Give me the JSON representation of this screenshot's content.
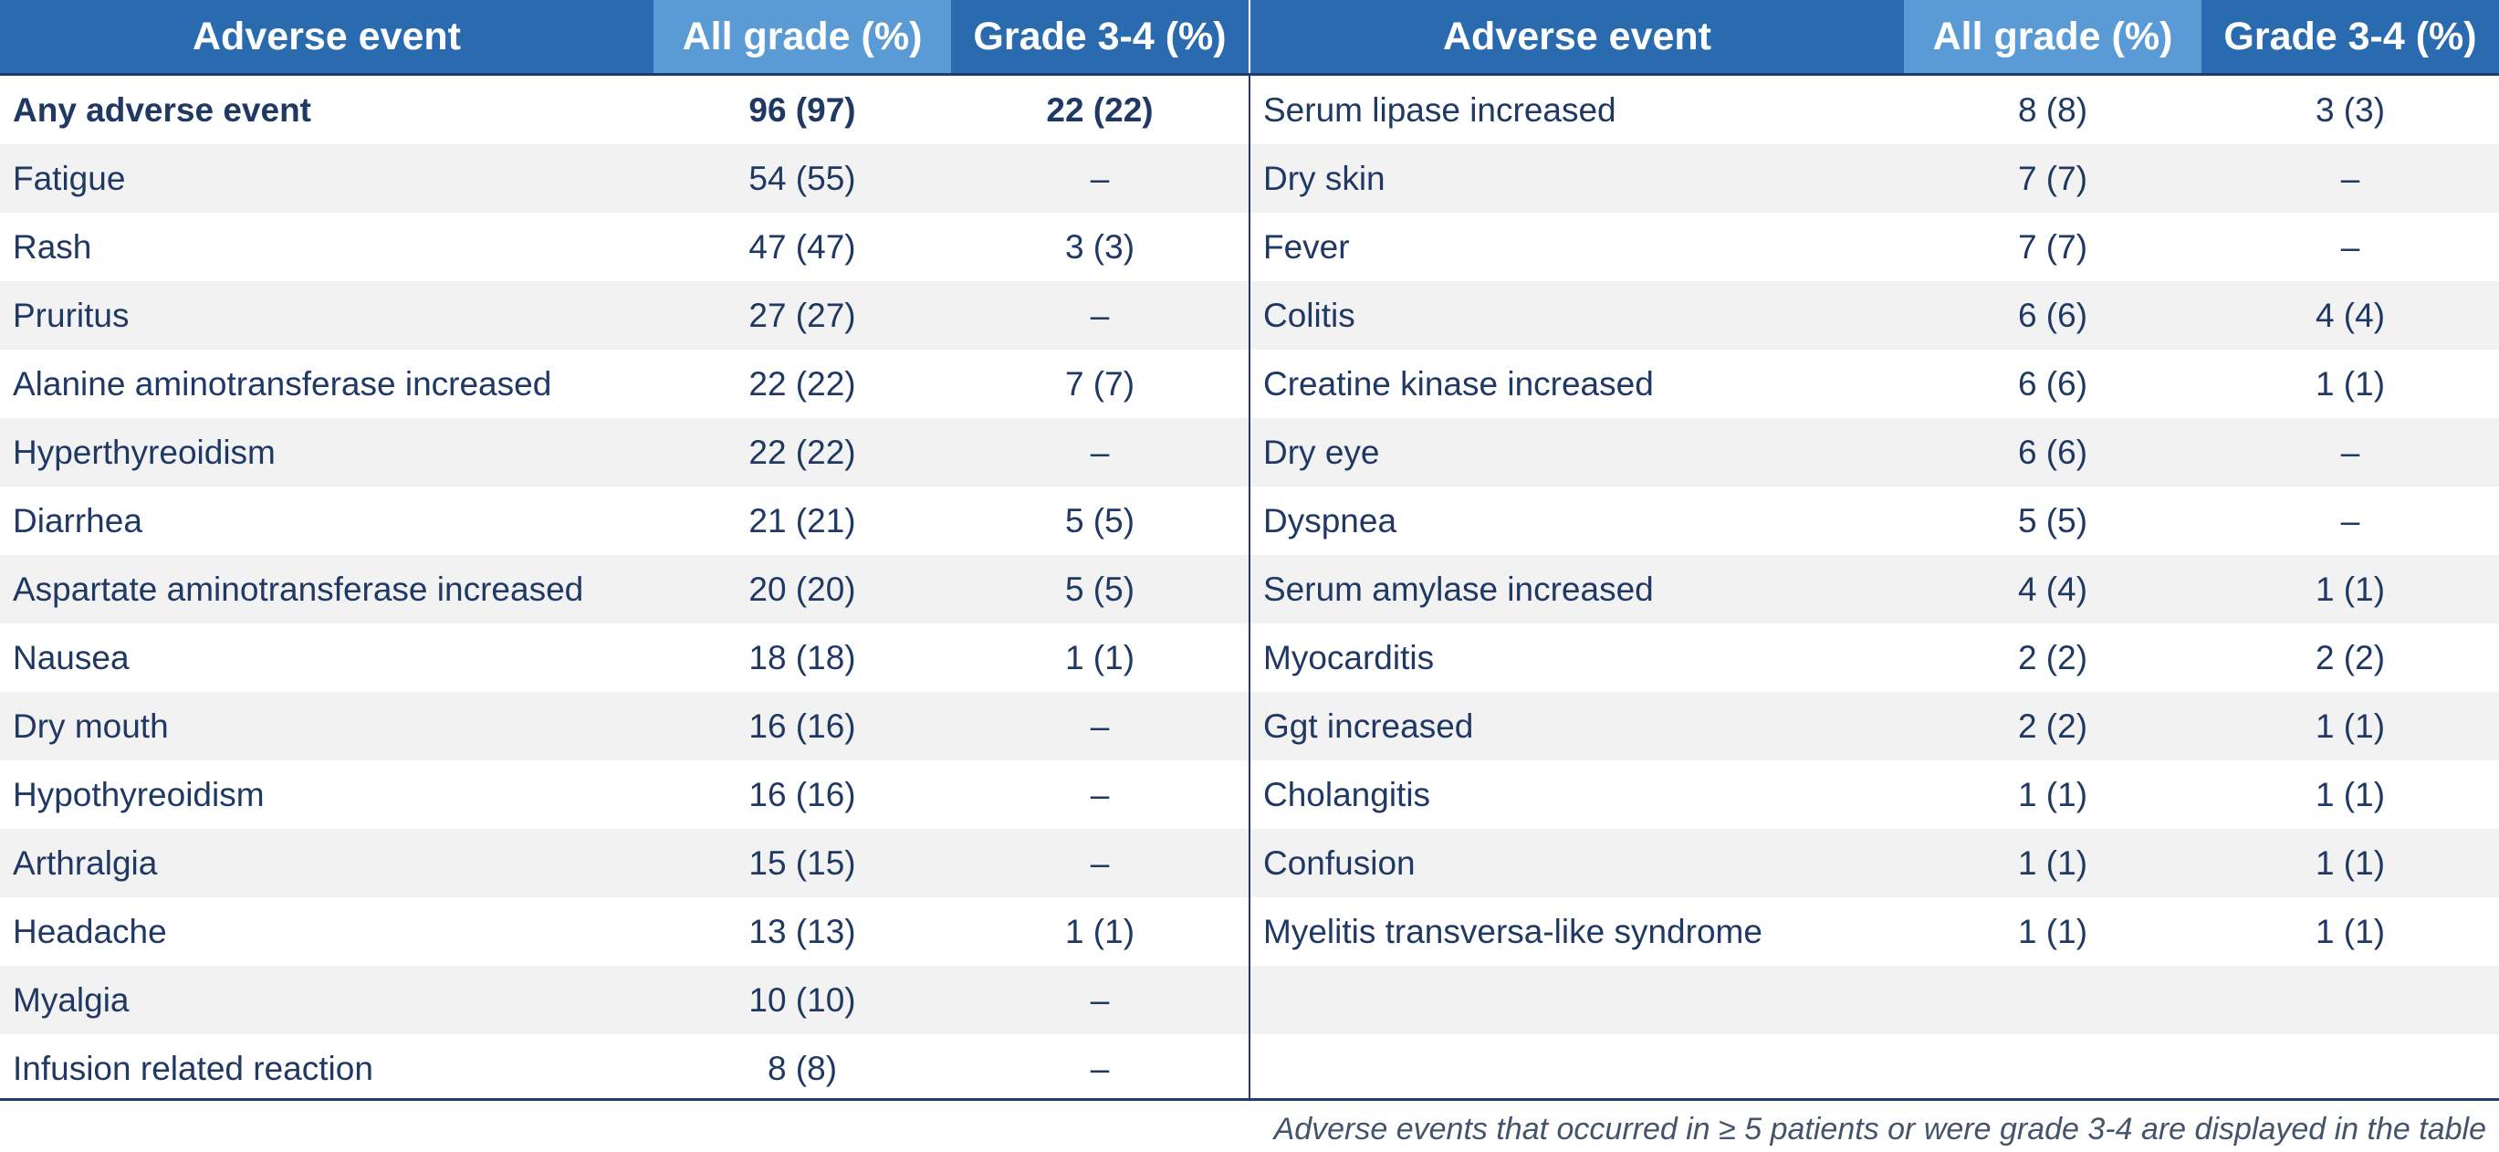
{
  "headers": {
    "event": "Adverse event",
    "all_grade": "All grade (%)",
    "grade34": "Grade 3-4 (%)"
  },
  "left_rows": [
    {
      "event": "Any adverse event",
      "all": "96 (97)",
      "g34": "22 (22)",
      "bold": true
    },
    {
      "event": "Fatigue",
      "all": "54 (55)",
      "g34": "–"
    },
    {
      "event": "Rash",
      "all": "47 (47)",
      "g34": "3 (3)"
    },
    {
      "event": "Pruritus",
      "all": "27 (27)",
      "g34": "–"
    },
    {
      "event": "Alanine aminotransferase increased",
      "all": "22 (22)",
      "g34": "7 (7)"
    },
    {
      "event": "Hyperthyreoidism",
      "all": "22 (22)",
      "g34": "–"
    },
    {
      "event": "Diarrhea",
      "all": "21 (21)",
      "g34": "5 (5)"
    },
    {
      "event": "Aspartate aminotransferase increased",
      "all": "20 (20)",
      "g34": "5 (5)"
    },
    {
      "event": "Nausea",
      "all": "18 (18)",
      "g34": "1 (1)"
    },
    {
      "event": "Dry mouth",
      "all": "16 (16)",
      "g34": "–"
    },
    {
      "event": "Hypothyreoidism",
      "all": "16 (16)",
      "g34": "–"
    },
    {
      "event": "Arthralgia",
      "all": "15 (15)",
      "g34": "–"
    },
    {
      "event": "Headache",
      "all": "13 (13)",
      "g34": "1 (1)"
    },
    {
      "event": "Myalgia",
      "all": "10 (10)",
      "g34": "–"
    },
    {
      "event": "Infusion related reaction",
      "all": "8 (8)",
      "g34": "–"
    }
  ],
  "right_rows": [
    {
      "event": "Serum lipase increased",
      "all": "8 (8)",
      "g34": "3 (3)"
    },
    {
      "event": "Dry skin",
      "all": "7 (7)",
      "g34": "–"
    },
    {
      "event": "Fever",
      "all": "7 (7)",
      "g34": "–"
    },
    {
      "event": "Colitis",
      "all": "6 (6)",
      "g34": "4 (4)"
    },
    {
      "event": "Creatine kinase increased",
      "all": "6 (6)",
      "g34": "1 (1)"
    },
    {
      "event": "Dry eye",
      "all": "6 (6)",
      "g34": "–"
    },
    {
      "event": "Dyspnea",
      "all": "5 (5)",
      "g34": "–"
    },
    {
      "event": "Serum amylase increased",
      "all": "4 (4)",
      "g34": "1 (1)"
    },
    {
      "event": "Myocarditis",
      "all": "2 (2)",
      "g34": "2 (2)"
    },
    {
      "event": "Ggt increased",
      "all": "2 (2)",
      "g34": "1 (1)"
    },
    {
      "event": "Cholangitis",
      "all": "1 (1)",
      "g34": "1 (1)"
    },
    {
      "event": "Confusion",
      "all": "1 (1)",
      "g34": "1 (1)"
    },
    {
      "event": "Myelitis transversa-like syndrome",
      "all": "1 (1)",
      "g34": "1 (1)"
    }
  ],
  "footnote": "Adverse events that occurred in ≥ 5 patients or were grade 3-4 are displayed in the table"
}
